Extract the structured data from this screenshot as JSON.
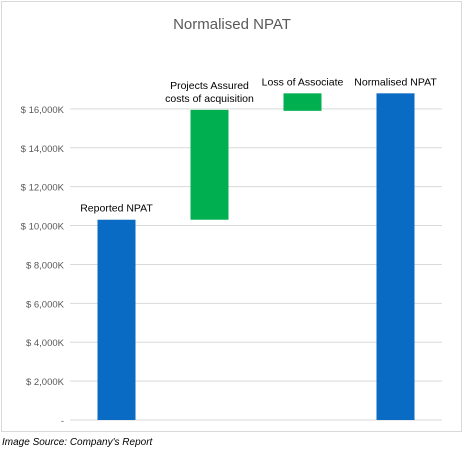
{
  "chart_data": {
    "type": "bar",
    "title": "Normalised NPAT",
    "xlabel": "",
    "ylabel": "",
    "ylim": [
      0,
      18000
    ],
    "y_ticks": [
      0,
      2000,
      4000,
      6000,
      8000,
      10000,
      12000,
      14000,
      16000
    ],
    "y_tick_labels": [
      "-",
      "$ 2,000K",
      "$ 4,000K",
      "$ 6,000K",
      "$ 8,000K",
      "$ 10,000K",
      "$ 12,000K",
      "$ 14,000K",
      "$ 16,000K"
    ],
    "grid": true,
    "legend": "none",
    "bars": [
      {
        "label_lines": [
          "Reported NPAT"
        ],
        "base": 0,
        "top": 10300,
        "color": "#0a6bc4"
      },
      {
        "label_lines": [
          "Projects Assured",
          "costs of acquisition"
        ],
        "base": 10300,
        "top": 15950,
        "color": "#00b050"
      },
      {
        "label_lines": [
          "Loss of Associate"
        ],
        "base": 15900,
        "top": 16800,
        "color": "#00b050"
      },
      {
        "label_lines": [
          "Normalised NPAT"
        ],
        "base": 0,
        "top": 16800,
        "color": "#0a6bc4"
      }
    ]
  },
  "source_note": "Image Source: Company's Report",
  "colors": {
    "gridline": "#d9d9d9",
    "title": "#595959",
    "tick_text": "#595959",
    "label_text": "#000000"
  }
}
